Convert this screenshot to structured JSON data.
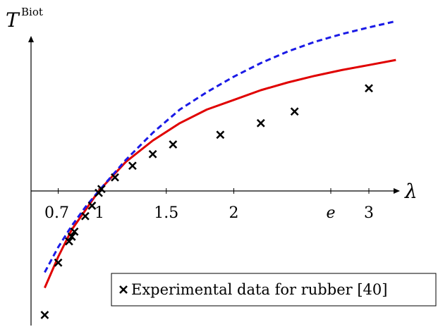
{
  "chart_data": {
    "type": "line",
    "title": "",
    "ylabel": {
      "base": "T",
      "sup": "Biot"
    },
    "xlabel": "λ",
    "x_ticks": [
      {
        "value": 0.7,
        "label": "0.7"
      },
      {
        "value": 1,
        "label": "1"
      },
      {
        "value": 1.5,
        "label": "1.5"
      },
      {
        "value": 2,
        "label": "2"
      },
      {
        "value": 2.718,
        "label": "e",
        "italic": true
      },
      {
        "value": 3,
        "label": "3"
      }
    ],
    "xlim": [
      0.5,
      3.2
    ],
    "ylim": [
      -3.6,
      4.4
    ],
    "grid": false,
    "series": [
      {
        "kind": "line",
        "color": "#e00000",
        "dash": "solid",
        "x": [
          0.6,
          0.7,
          0.8,
          0.9,
          1.0,
          1.2,
          1.4,
          1.6,
          1.8,
          2.0,
          2.2,
          2.4,
          2.6,
          2.8,
          3.0,
          3.2
        ],
        "y": [
          -2.5,
          -1.7,
          -1.0,
          -0.5,
          0.0,
          0.75,
          1.3,
          1.75,
          2.1,
          2.35,
          2.6,
          2.8,
          2.97,
          3.12,
          3.25,
          3.38
        ]
      },
      {
        "kind": "line",
        "color": "#1a1ae6",
        "dash": "dashed",
        "x": [
          0.6,
          0.7,
          0.8,
          0.9,
          1.0,
          1.2,
          1.4,
          1.6,
          1.8,
          2.0,
          2.2,
          2.4,
          2.6,
          2.8,
          3.0,
          3.2
        ],
        "y": [
          -2.1,
          -1.45,
          -0.9,
          -0.42,
          0.0,
          0.8,
          1.5,
          2.1,
          2.55,
          2.95,
          3.3,
          3.6,
          3.85,
          4.05,
          4.22,
          4.38
        ]
      },
      {
        "kind": "scatter",
        "name": "Experimental data for rubber [40]",
        "color": "#000000",
        "marker": "x",
        "x": [
          0.6,
          0.7,
          0.78,
          0.8,
          0.82,
          0.9,
          0.95,
          1.0,
          1.02,
          1.12,
          1.25,
          1.4,
          1.55,
          1.9,
          2.2,
          2.45,
          3.0
        ],
        "y": [
          -3.2,
          -1.85,
          -1.3,
          -1.18,
          -1.05,
          -0.65,
          -0.38,
          -0.05,
          0.05,
          0.35,
          0.65,
          0.95,
          1.2,
          1.45,
          1.75,
          2.05,
          2.65
        ]
      }
    ],
    "legend": {
      "position": "bottom-right",
      "entries": [
        "Experimental data for rubber [40]"
      ]
    }
  }
}
